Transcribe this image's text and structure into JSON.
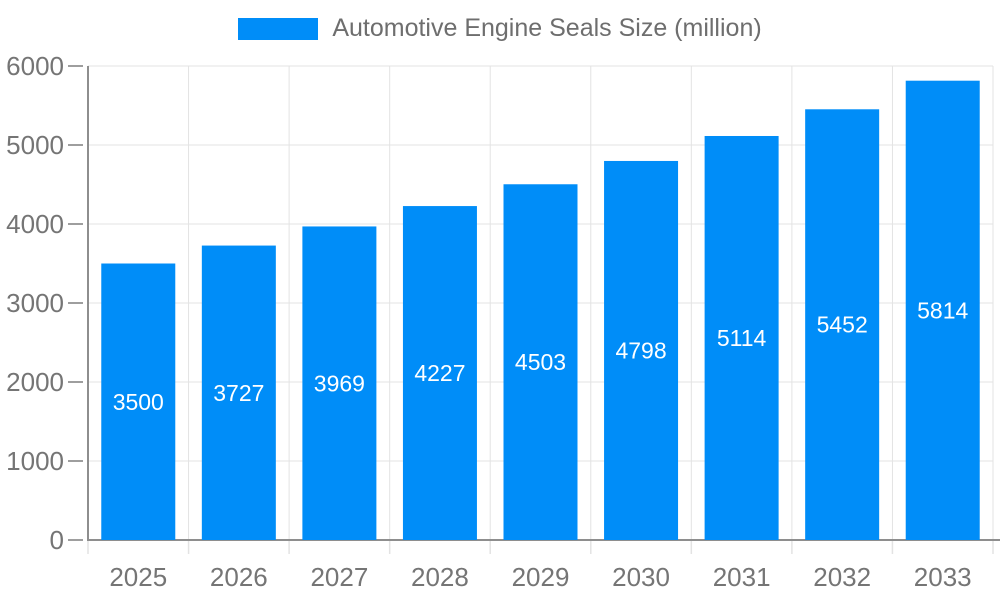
{
  "chart_data": {
    "type": "bar",
    "title": "Automotive Engine Seals Size (million)",
    "legend": {
      "position": "top",
      "entries": [
        "Automotive Engine Seals Size (million)"
      ]
    },
    "categories": [
      "2025",
      "2026",
      "2027",
      "2028",
      "2029",
      "2030",
      "2031",
      "2032",
      "2033"
    ],
    "values": [
      3500,
      3727,
      3969,
      4227,
      4503,
      4798,
      5114,
      5452,
      5814
    ],
    "bar_value_labels": [
      "3500",
      "3727",
      "3969",
      "4227",
      "4503",
      "4798",
      "5114",
      "5452",
      "5814"
    ],
    "xlabel": "",
    "ylabel": "",
    "ylim": [
      0,
      6000
    ],
    "yticks": [
      0,
      1000,
      2000,
      3000,
      4000,
      5000,
      6000
    ],
    "ytick_labels": [
      "0",
      "1000",
      "2000",
      "3000",
      "4000",
      "5000",
      "6000"
    ],
    "grid": true,
    "colors": {
      "bar": "#008df8",
      "grid": "#e3e3e3",
      "axis": "#8e8e8e",
      "tick": "#9e9e9e",
      "axis_label": "#757575",
      "bar_label": "#ffffff",
      "legend_text": "#6e6e6e",
      "background": "#ffffff"
    }
  }
}
